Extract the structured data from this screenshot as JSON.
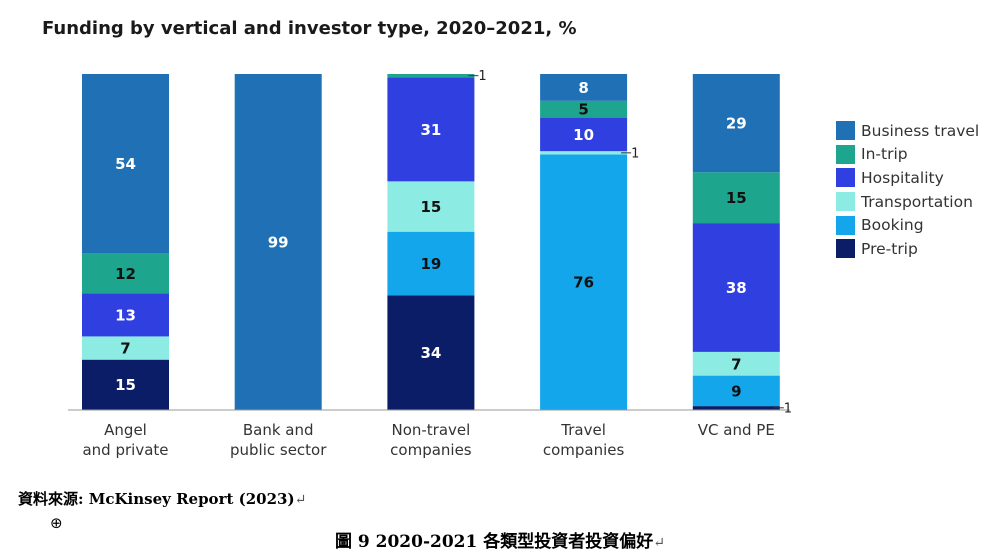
{
  "chart_data": {
    "type": "bar",
    "stacked": true,
    "normalized_percent": true,
    "title": "Funding by vertical and investor type, 2020–2021, %",
    "categories": [
      "Angel\nand private",
      "Bank and\npublic sector",
      "Non-travel\ncompanies",
      "Travel\ncompanies",
      "VC and PE"
    ],
    "series": [
      {
        "name": "Pre-trip",
        "color": "#0b1d66",
        "text_color": "#ffffff",
        "values": [
          15,
          0,
          34,
          0,
          1
        ]
      },
      {
        "name": "Booking",
        "color": "#13a6ea",
        "text_color": "#111111",
        "values": [
          0,
          0,
          19,
          76,
          9
        ]
      },
      {
        "name": "Transportation",
        "color": "#8cece3",
        "text_color": "#111111",
        "values": [
          7,
          0,
          15,
          1,
          7
        ]
      },
      {
        "name": "Hospitality",
        "color": "#2f3fe0",
        "text_color": "#ffffff",
        "values": [
          13,
          0,
          31,
          10,
          38
        ]
      },
      {
        "name": "In-trip",
        "color": "#1ea58e",
        "text_color": "#111111",
        "values": [
          12,
          0,
          1,
          5,
          15
        ]
      },
      {
        "name": "Business travel",
        "color": "#1f70b4",
        "text_color": "#ffffff",
        "values": [
          54,
          99,
          0,
          8,
          29
        ]
      }
    ],
    "legend_order": [
      "Business travel",
      "In-trip",
      "Hospitality",
      "Transportation",
      "Booking",
      "Pre-trip"
    ],
    "legend_position": "right",
    "grid": false
  },
  "source_note": "資料來源: McKinsey Report (2023)",
  "figure_caption": "圖 9 2020-2021  各類型投資者投資偏好",
  "anchor_symbol": "⊕",
  "return_symbol": "↵"
}
